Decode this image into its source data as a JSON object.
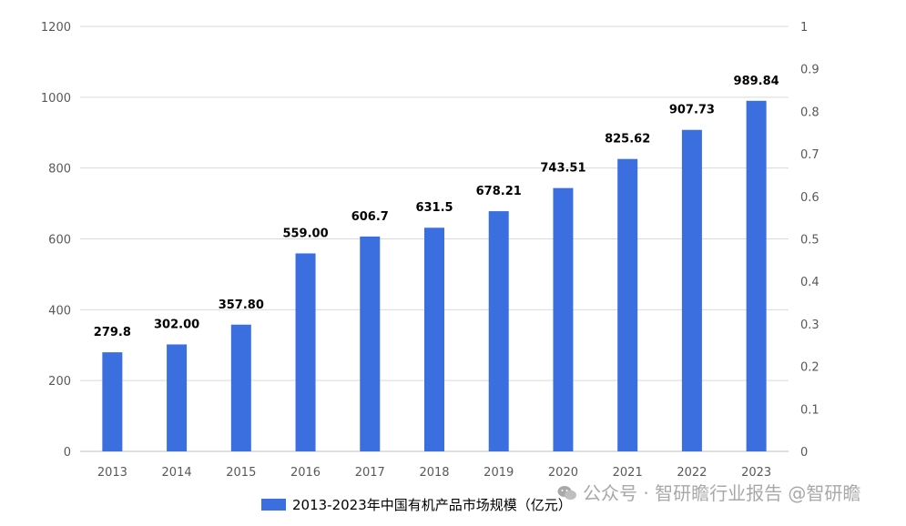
{
  "chart_data": {
    "type": "bar",
    "categories": [
      "2013",
      "2014",
      "2015",
      "2016",
      "2017",
      "2018",
      "2019",
      "2020",
      "2021",
      "2022",
      "2023"
    ],
    "values": [
      279.8,
      302.0,
      357.8,
      559.0,
      606.7,
      631.5,
      678.21,
      743.51,
      825.62,
      907.73,
      989.84
    ],
    "data_labels": [
      "279.8",
      "302.00",
      "357.80",
      "559.00",
      "606.7",
      "631.5",
      "678.21",
      "743.51",
      "825.62",
      "907.73",
      "989.84"
    ],
    "series": [
      {
        "name": "2013-2023年中国有机产品市场规模（亿元）",
        "color": "#3b6fe0"
      }
    ],
    "ylim": [
      0,
      1200
    ],
    "yticks": [
      "0",
      "200",
      "400",
      "600",
      "800",
      "1000",
      "1200"
    ],
    "y2lim": [
      0,
      1
    ],
    "y2ticks": [
      "0",
      "0.1",
      "0.2",
      "0.3",
      "0.4",
      "0.5",
      "0.6",
      "0.7",
      "0.8",
      "0.9",
      "1"
    ],
    "grid": true,
    "legend_position": "bottom",
    "title": "",
    "xlabel": "",
    "ylabel": ""
  },
  "watermark": {
    "text": "公众号 · 智研瞻行业报告 @智研瞻",
    "icon": "wechat-icon"
  }
}
